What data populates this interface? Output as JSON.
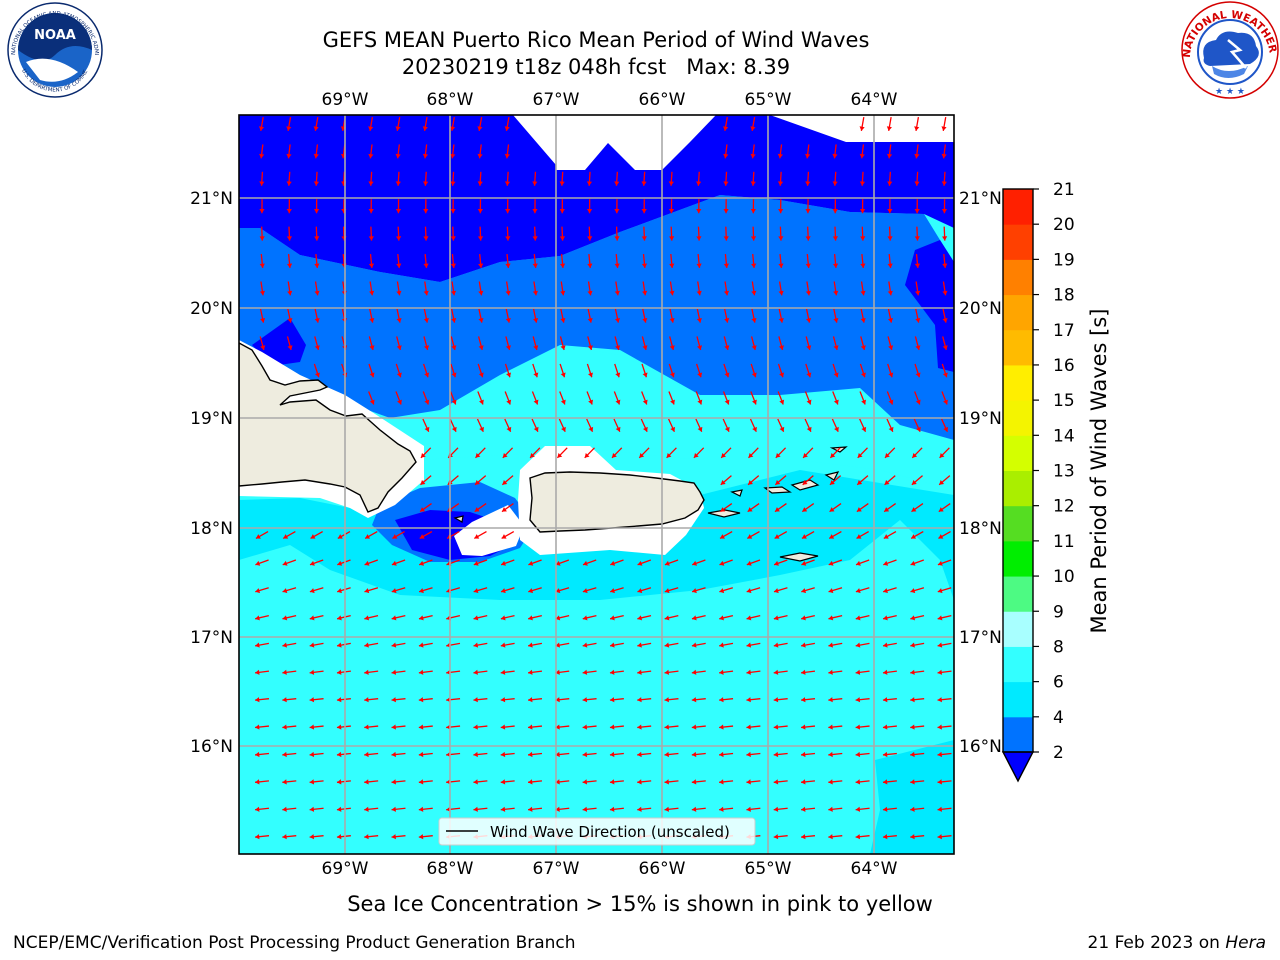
{
  "title": {
    "line1": "GEFS MEAN Puerto Rico Mean Period of Wind Waves",
    "line2": "20230219 t18z 048h fcst   Max: 8.39"
  },
  "logos": {
    "noaa_text": "NOAA",
    "noaa_ring_text": "NATIONAL OCEANIC AND ATMOSPHERIC ADMINISTRATION",
    "noaa_ring_bottom": "U.S. DEPARTMENT OF COMMERCE",
    "nws_ring_text": "NATIONAL WEATHER SERVICE"
  },
  "map": {
    "lon_labels": [
      "69°W",
      "68°W",
      "67°W",
      "66°W",
      "65°W",
      "64°W"
    ],
    "lat_labels": [
      "21°N",
      "20°N",
      "19°N",
      "18°N",
      "17°N",
      "16°N"
    ],
    "legend_label": "Wind Wave Direction (unscaled)",
    "arrow_color": "#ff0000",
    "land_color": "#eeecdf"
  },
  "colorbar": {
    "label": "Mean Period of Wind Waves [s]",
    "ticks": [
      "2",
      "4",
      "6",
      "8",
      "9",
      "10",
      "11",
      "12",
      "13",
      "14",
      "15",
      "16",
      "17",
      "18",
      "19",
      "20",
      "21"
    ],
    "colors": [
      "#0000ff",
      "#0073ff",
      "#00eaff",
      "#33ffff",
      "#a8ffff",
      "#4dfa83",
      "#00ee00",
      "#55dd22",
      "#aaee00",
      "#d4ff00",
      "#f4f400",
      "#ffee00",
      "#ffbb00",
      "#ffa500",
      "#ff8000",
      "#ff4000",
      "#ff2000",
      "#ff0000"
    ]
  },
  "subcaption": "Sea Ice Concentration > 15% is shown in pink to yellow",
  "footer": {
    "left": "NCEP/EMC/Verification Post Processing Product Generation Branch",
    "right_prefix": "21 Feb 2023 on ",
    "right_system": "Hera"
  }
}
